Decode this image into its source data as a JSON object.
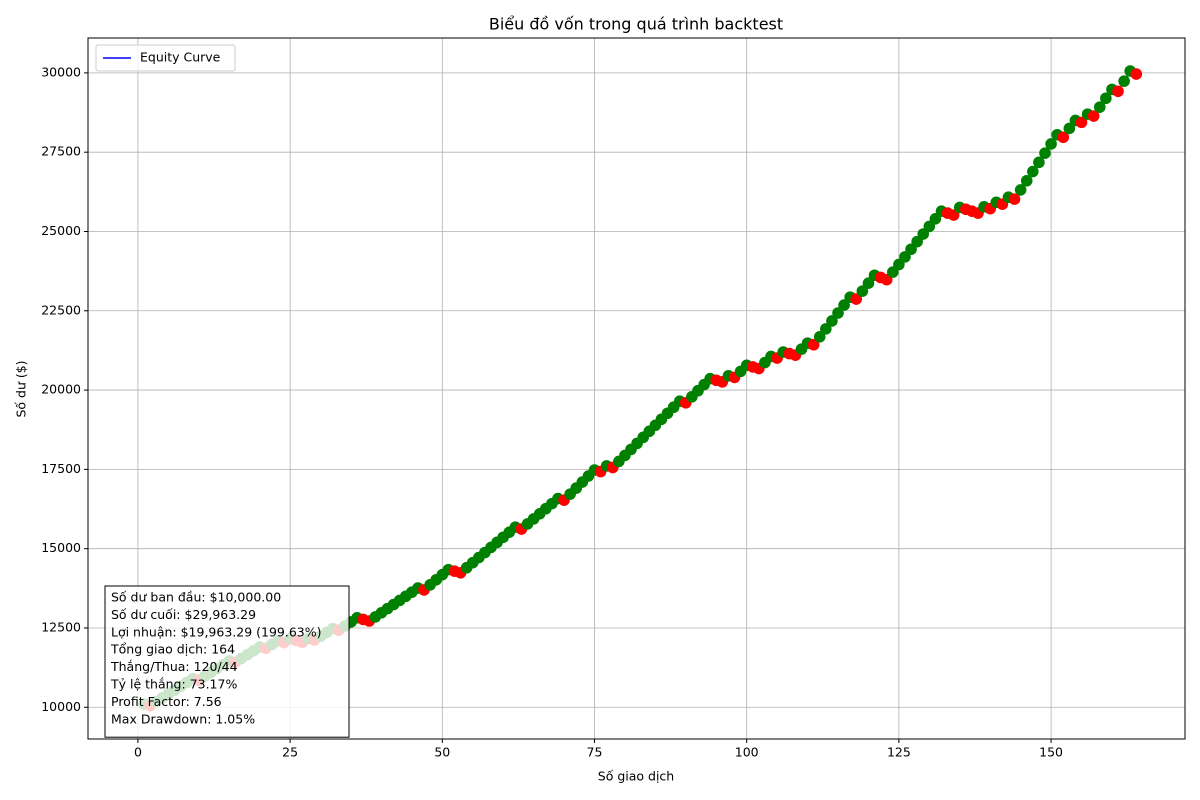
{
  "chart_data": {
    "type": "line",
    "title": "Biểu đồ vốn trong quá trình backtest",
    "x_label": "Số giao dịch",
    "y_label": "Số dư ($)",
    "x": [
      1,
      2,
      3,
      4,
      5,
      6,
      7,
      8,
      9,
      10,
      11,
      12,
      13,
      14,
      15,
      16,
      17,
      18,
      19,
      20,
      21,
      22,
      23,
      24,
      25,
      26,
      27,
      28,
      29,
      30,
      31,
      32,
      33,
      34,
      35,
      36,
      37,
      38,
      39,
      40,
      41,
      42,
      43,
      44,
      45,
      46,
      47,
      48,
      49,
      50,
      51,
      52,
      53,
      54,
      55,
      56,
      57,
      58,
      59,
      60,
      61,
      62,
      63,
      64,
      65,
      66,
      67,
      68,
      69,
      70,
      71,
      72,
      73,
      74,
      75,
      76,
      77,
      78,
      79,
      80,
      81,
      82,
      83,
      84,
      85,
      86,
      87,
      88,
      89,
      90,
      91,
      92,
      93,
      94,
      95,
      96,
      97,
      98,
      99,
      100,
      101,
      102,
      103,
      104,
      105,
      106,
      107,
      108,
      109,
      110,
      111,
      112,
      113,
      114,
      115,
      116,
      117,
      118,
      119,
      120,
      121,
      122,
      123,
      124,
      125,
      126,
      127,
      128,
      129,
      130,
      131,
      132,
      133,
      134,
      135,
      136,
      137,
      138,
      139,
      140,
      141,
      142,
      143,
      144,
      145,
      146,
      147,
      148,
      149,
      150,
      151,
      152,
      153,
      154,
      155,
      156,
      157,
      158,
      159,
      160,
      161,
      162,
      163,
      164
    ],
    "series": [
      {
        "name": "Equity Curve",
        "color": "blue",
        "values": [
          10100,
          10050,
          10180,
          10300,
          10420,
          10540,
          10660,
          10780,
          10900,
          10850,
          10980,
          11100,
          11220,
          11340,
          11460,
          11420,
          11540,
          11660,
          11780,
          11900,
          11860,
          11980,
          12100,
          12040,
          12160,
          12100,
          12050,
          12170,
          12120,
          12240,
          12360,
          12480,
          12430,
          12560,
          12690,
          12820,
          12770,
          12720,
          12850,
          12980,
          13110,
          13240,
          13370,
          13500,
          13630,
          13760,
          13700,
          13860,
          14020,
          14180,
          14340,
          14290,
          14240,
          14400,
          14560,
          14720,
          14880,
          15040,
          15200,
          15360,
          15520,
          15680,
          15620,
          15780,
          15940,
          16100,
          16260,
          16420,
          16580,
          16530,
          16720,
          16910,
          17100,
          17290,
          17480,
          17430,
          17610,
          17560,
          17750,
          17940,
          18130,
          18320,
          18510,
          18700,
          18890,
          19080,
          19270,
          19460,
          19650,
          19600,
          19790,
          19980,
          20170,
          20360,
          20310,
          20260,
          20450,
          20400,
          20590,
          20780,
          20730,
          20680,
          20870,
          21060,
          21010,
          21200,
          21150,
          21100,
          21290,
          21480,
          21430,
          21680,
          21930,
          22180,
          22430,
          22680,
          22930,
          22870,
          23120,
          23370,
          23620,
          23550,
          23480,
          23720,
          23960,
          24200,
          24440,
          24680,
          24920,
          25160,
          25400,
          25640,
          25580,
          25520,
          25760,
          25700,
          25640,
          25580,
          25780,
          25720,
          25920,
          25860,
          26080,
          26020,
          26310,
          26600,
          26890,
          27180,
          27470,
          27760,
          28050,
          27970,
          28250,
          28500,
          28440,
          28700,
          28640,
          28920,
          29200,
          29480,
          29420,
          29740,
          30060,
          29963.29
        ]
      }
    ],
    "win_color": "green",
    "loss_color": "red",
    "xlim": [
      -8.2,
      172
    ],
    "ylim": [
      9000,
      31100
    ],
    "xticks": [
      0,
      25,
      50,
      75,
      100,
      125,
      150
    ],
    "yticks": [
      10000,
      12500,
      15000,
      17500,
      20000,
      22500,
      25000,
      27500,
      30000
    ],
    "grid": true,
    "legend": "upper left",
    "annotation_lines": [
      "Số dư ban đầu: $10,000.00",
      "Số dư cuối: $29,963.29",
      "Lợi nhuận: $19,963.29 (199.63%)",
      "Tổng giao dịch: 164",
      "Thắng/Thua: 120/44",
      "Tỷ lệ thắng: 73.17%",
      "Profit Factor: 7.56",
      "Max Drawdown: 1.05%"
    ]
  }
}
